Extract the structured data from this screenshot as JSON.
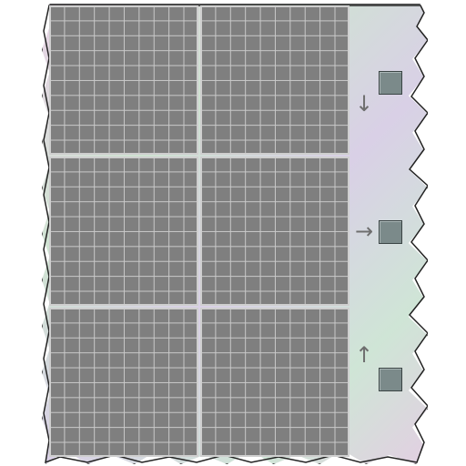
{
  "board": {
    "blocks": [
      {
        "id": "r1c1"
      },
      {
        "id": "r1c2"
      },
      {
        "id": "r2c1"
      },
      {
        "id": "r2c2"
      },
      {
        "id": "r3c1"
      },
      {
        "id": "r3c2"
      }
    ],
    "grid_cells_per_side": 10
  },
  "controls": [
    {
      "arrow": "↓",
      "icon": "arrow-down-icon"
    },
    {
      "arrow": "→",
      "icon": "arrow-right-icon"
    },
    {
      "arrow": "↑",
      "icon": "arrow-up-icon"
    }
  ],
  "colors": {
    "cell": "#7f7f7f",
    "grid_line": "#c9c9c9",
    "square": "#7b8a8a"
  }
}
